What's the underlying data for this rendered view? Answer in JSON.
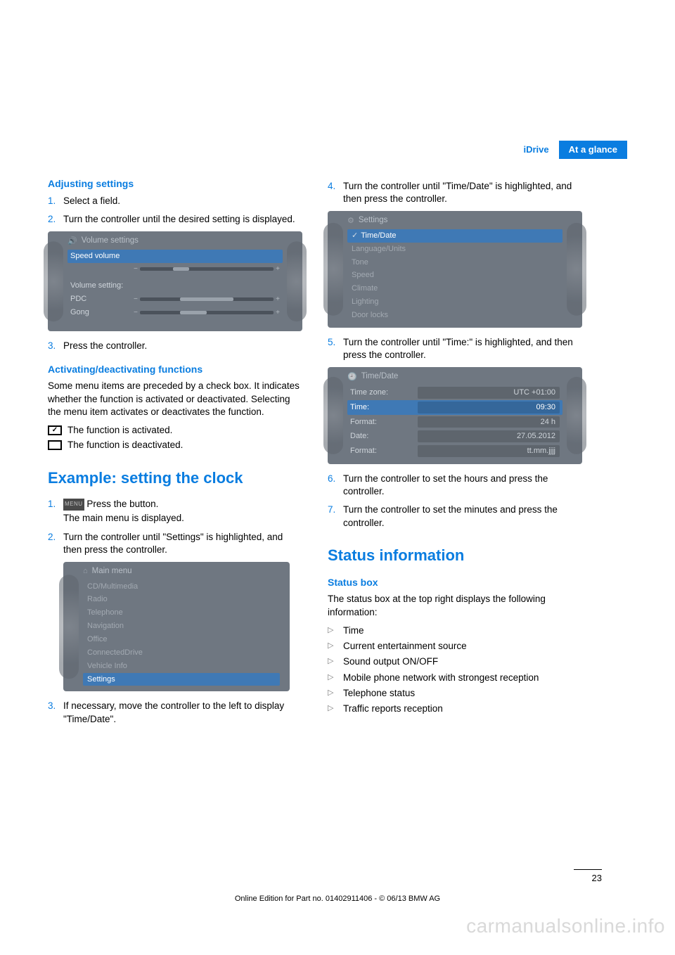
{
  "header": {
    "tab_left": "iDrive",
    "tab_right": "At a glance"
  },
  "left": {
    "h_adjust": "Adjusting settings",
    "adj_steps": [
      {
        "n": "1.",
        "t": "Select a field."
      },
      {
        "n": "2.",
        "t": "Turn the controller until the desired setting is displayed."
      },
      {
        "n": "3.",
        "t": "Press the controller."
      }
    ],
    "shot_volume": {
      "title": "Volume settings",
      "speed_label": "Speed volume",
      "vol_setting": "Volume setting:",
      "pdc": "PDC",
      "gong": "Gong",
      "fills": {
        "speed": 30,
        "pdc": 55,
        "gong": 35
      }
    },
    "h_activ": "Activating/deactivating functions",
    "p_activ": "Some menu items are preceded by a check box. It indicates whether the function is activated or deactivated. Selecting the menu item activates or deactivates the function.",
    "fn_on": "The function is activated.",
    "fn_off": "The function is deactivated.",
    "h_example": "Example: setting the clock",
    "ex_steps": [
      {
        "n": "1.",
        "t": "Press the button.",
        "sub": "The main menu is displayed.",
        "has_btn": true
      },
      {
        "n": "2.",
        "t": "Turn the controller until \"Settings\" is highlighted, and then press the controller."
      },
      {
        "n": "3.",
        "t": "If necessary, move the controller to the left to display \"Time/Date\"."
      }
    ],
    "shot_main": {
      "title": "Main menu",
      "items": [
        "CD/Multimedia",
        "Radio",
        "Telephone",
        "Navigation",
        "Office",
        "ConnectedDrive",
        "Vehicle Info",
        "Settings"
      ],
      "highlight_index": 7
    }
  },
  "right": {
    "steps_4_7": [
      {
        "n": "4.",
        "t": "Turn the controller until \"Time/Date\" is highlighted, and then press the controller."
      },
      {
        "n": "5.",
        "t": "Turn the controller until \"Time:\" is highlighted, and then press the controller."
      },
      {
        "n": "6.",
        "t": "Turn the controller to set the hours and press the controller."
      },
      {
        "n": "7.",
        "t": "Turn the controller to set the minutes and press the controller."
      }
    ],
    "shot_settings": {
      "title": "Settings",
      "items": [
        "Time/Date",
        "Language/Units",
        "Tone",
        "Speed",
        "Climate",
        "Lighting",
        "Door locks"
      ],
      "highlight_index": 0
    },
    "shot_timedate": {
      "title": "Time/Date",
      "rows": [
        {
          "label": "Time zone:",
          "val": "UTC +01:00"
        },
        {
          "label": "Time:",
          "val": "09:30",
          "hl": true
        },
        {
          "label": "Format:",
          "val": "24 h"
        },
        {
          "label": "Date:",
          "val": "27.05.2012"
        },
        {
          "label": "Format:",
          "val": "tt.mm.jjjj"
        }
      ]
    },
    "h_status": "Status information",
    "h_box": "Status box",
    "p_box": "The status box at the top right displays the following information:",
    "bullets": [
      "Time",
      "Current entertainment source",
      "Sound output ON/OFF",
      "Mobile phone network with strongest reception",
      "Telephone status",
      "Traffic reports reception"
    ]
  },
  "footer": {
    "page": "23",
    "line": "Online Edition for Part no. 01402911406 - © 06/13 BMW AG",
    "watermark": "carmanualsonline.info"
  }
}
